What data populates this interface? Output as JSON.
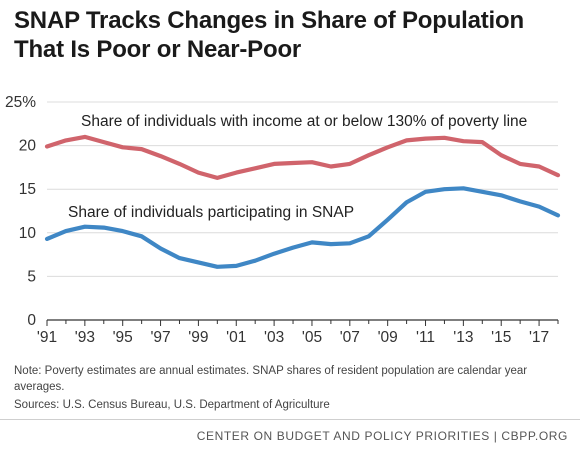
{
  "title_line1": "SNAP Tracks Changes in Share of Population",
  "title_line2": "That Is Poor or Near-Poor",
  "chart_data": {
    "type": "line",
    "x": [
      1991,
      1992,
      1993,
      1994,
      1995,
      1996,
      1997,
      1998,
      1999,
      2000,
      2001,
      2002,
      2003,
      2004,
      2005,
      2006,
      2007,
      2008,
      2009,
      2010,
      2011,
      2012,
      2013,
      2014,
      2015,
      2016,
      2017,
      2018
    ],
    "x_tick_labels": [
      "'91",
      "'93",
      "'95",
      "'97",
      "'99",
      "'01",
      "'03",
      "'05",
      "'07",
      "'09",
      "'11",
      "'13",
      "'15",
      "'17"
    ],
    "y_tick_labels": [
      "25%",
      "20",
      "15",
      "10",
      "5",
      "0"
    ],
    "ylim": [
      0,
      25
    ],
    "grid": "horizontal",
    "series": [
      {
        "name": "Share of individuals with income at or below 130% of poverty line",
        "color": "#d0646c",
        "values": [
          19.9,
          20.6,
          21.0,
          20.4,
          19.8,
          19.6,
          18.8,
          17.9,
          16.9,
          16.3,
          16.9,
          17.4,
          17.9,
          18.0,
          18.1,
          17.6,
          17.9,
          18.9,
          19.8,
          20.6,
          20.8,
          20.9,
          20.5,
          20.4,
          18.9,
          17.9,
          17.6,
          16.6
        ]
      },
      {
        "name": "Share of individuals participating in SNAP",
        "color": "#3f87c5",
        "values": [
          9.3,
          10.2,
          10.7,
          10.6,
          10.2,
          9.6,
          8.2,
          7.1,
          6.6,
          6.1,
          6.2,
          6.8,
          7.6,
          8.3,
          8.9,
          8.7,
          8.8,
          9.6,
          11.5,
          13.5,
          14.7,
          15.0,
          15.1,
          14.7,
          14.3,
          13.6,
          13.0,
          12.0
        ]
      }
    ]
  },
  "note": "Note: Poverty estimates are annual estimates. SNAP shares of resident population are calendar year averages.",
  "sources": "Sources: U.S. Census Bureau, U.S. Department of Agriculture",
  "footer": "CENTER ON BUDGET AND POLICY PRIORITIES | CBPP.ORG"
}
